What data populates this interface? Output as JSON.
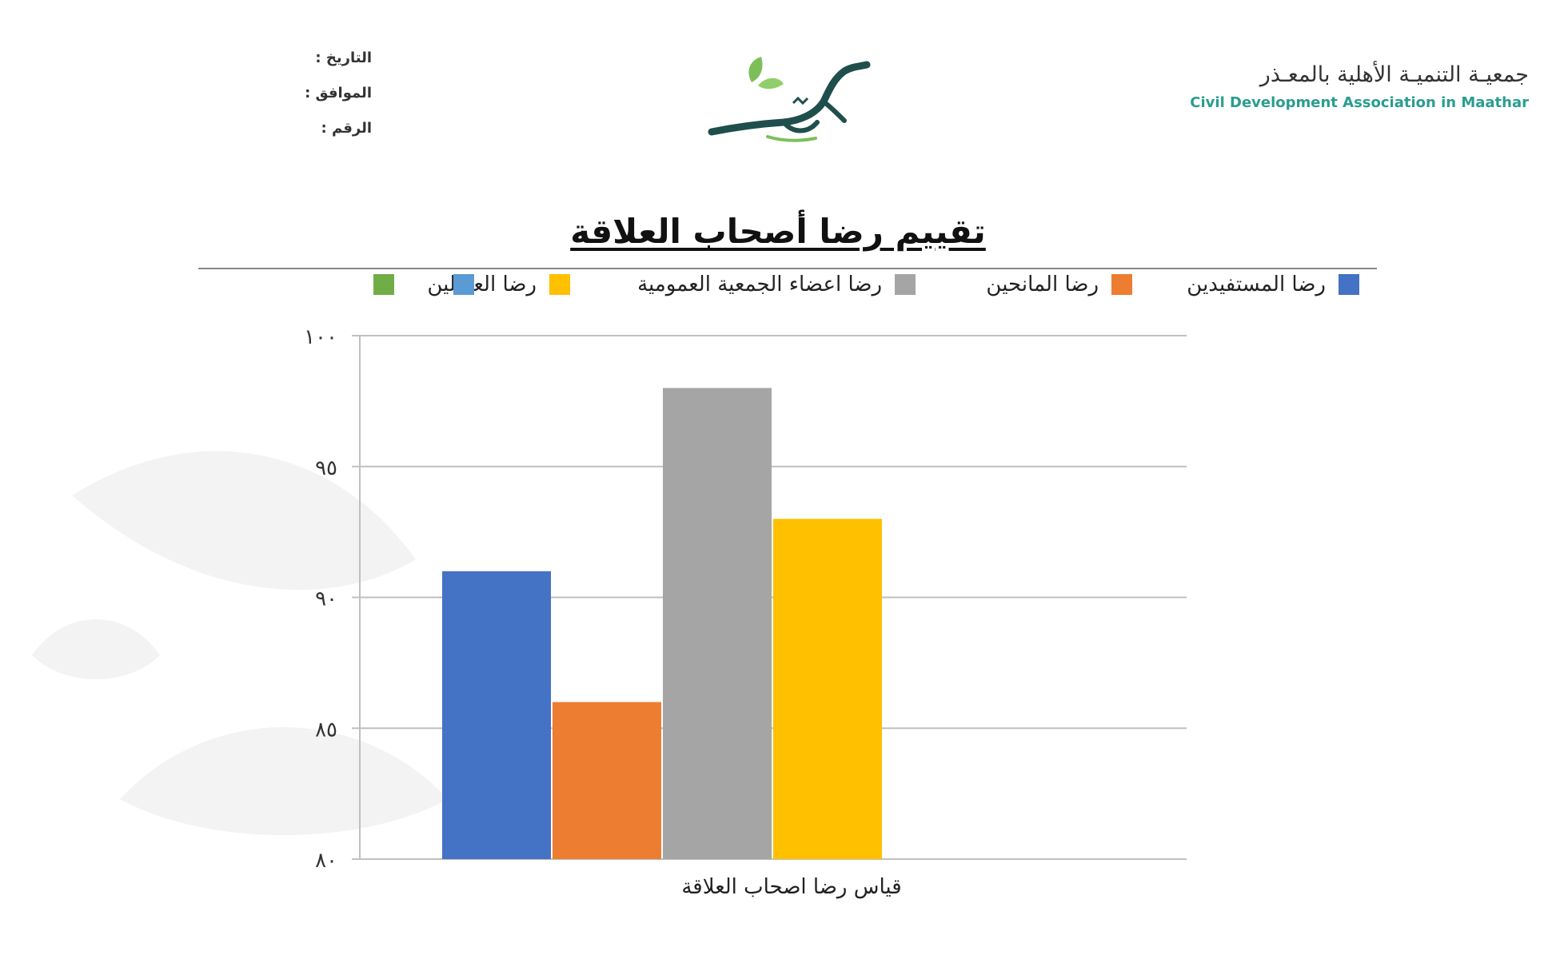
{
  "header": {
    "meta_fields": [
      "التاريخ :",
      "الموافق :",
      "الرقم :"
    ],
    "org_name_ar": "جمعيـة التنميـة الأهلية بالمعـذر",
    "org_name_en": "Civil Development Association in Maathar",
    "logo_icon": "leaf-calligraphy-logo"
  },
  "page_title": "تقييم رضا أصحاب العلاقة",
  "colors": {
    "accent": "#2a9d8f",
    "logo_green": "#7cbf5a",
    "logo_dark": "#1f4f4d"
  },
  "chart_data": {
    "type": "bar",
    "categories": [
      "قياس رضا اصحاب العلاقة"
    ],
    "series": [
      {
        "name": "رضا المستفيدين",
        "values": [
          91
        ],
        "color": "#4472C4"
      },
      {
        "name": "رضا المانحين",
        "values": [
          86
        ],
        "color": "#ED7D31"
      },
      {
        "name": "رضا اعضاء الجمعية العمومية",
        "values": [
          98
        ],
        "color": "#A5A5A5"
      },
      {
        "name": "رضا العاملين",
        "values": [
          93
        ],
        "color": "#FFC000"
      },
      {
        "name": "",
        "values": [
          null
        ],
        "color": "#5B9BD5"
      },
      {
        "name": "",
        "values": [
          null
        ],
        "color": "#70AD47"
      }
    ],
    "ylim": [
      80,
      100
    ],
    "yticks": [
      80,
      85,
      90,
      95,
      100
    ],
    "ytick_labels": [
      "٨٠",
      "٨٥",
      "٩٠",
      "٩٥",
      "١٠٠"
    ],
    "grid": true,
    "legend_position": "top"
  }
}
